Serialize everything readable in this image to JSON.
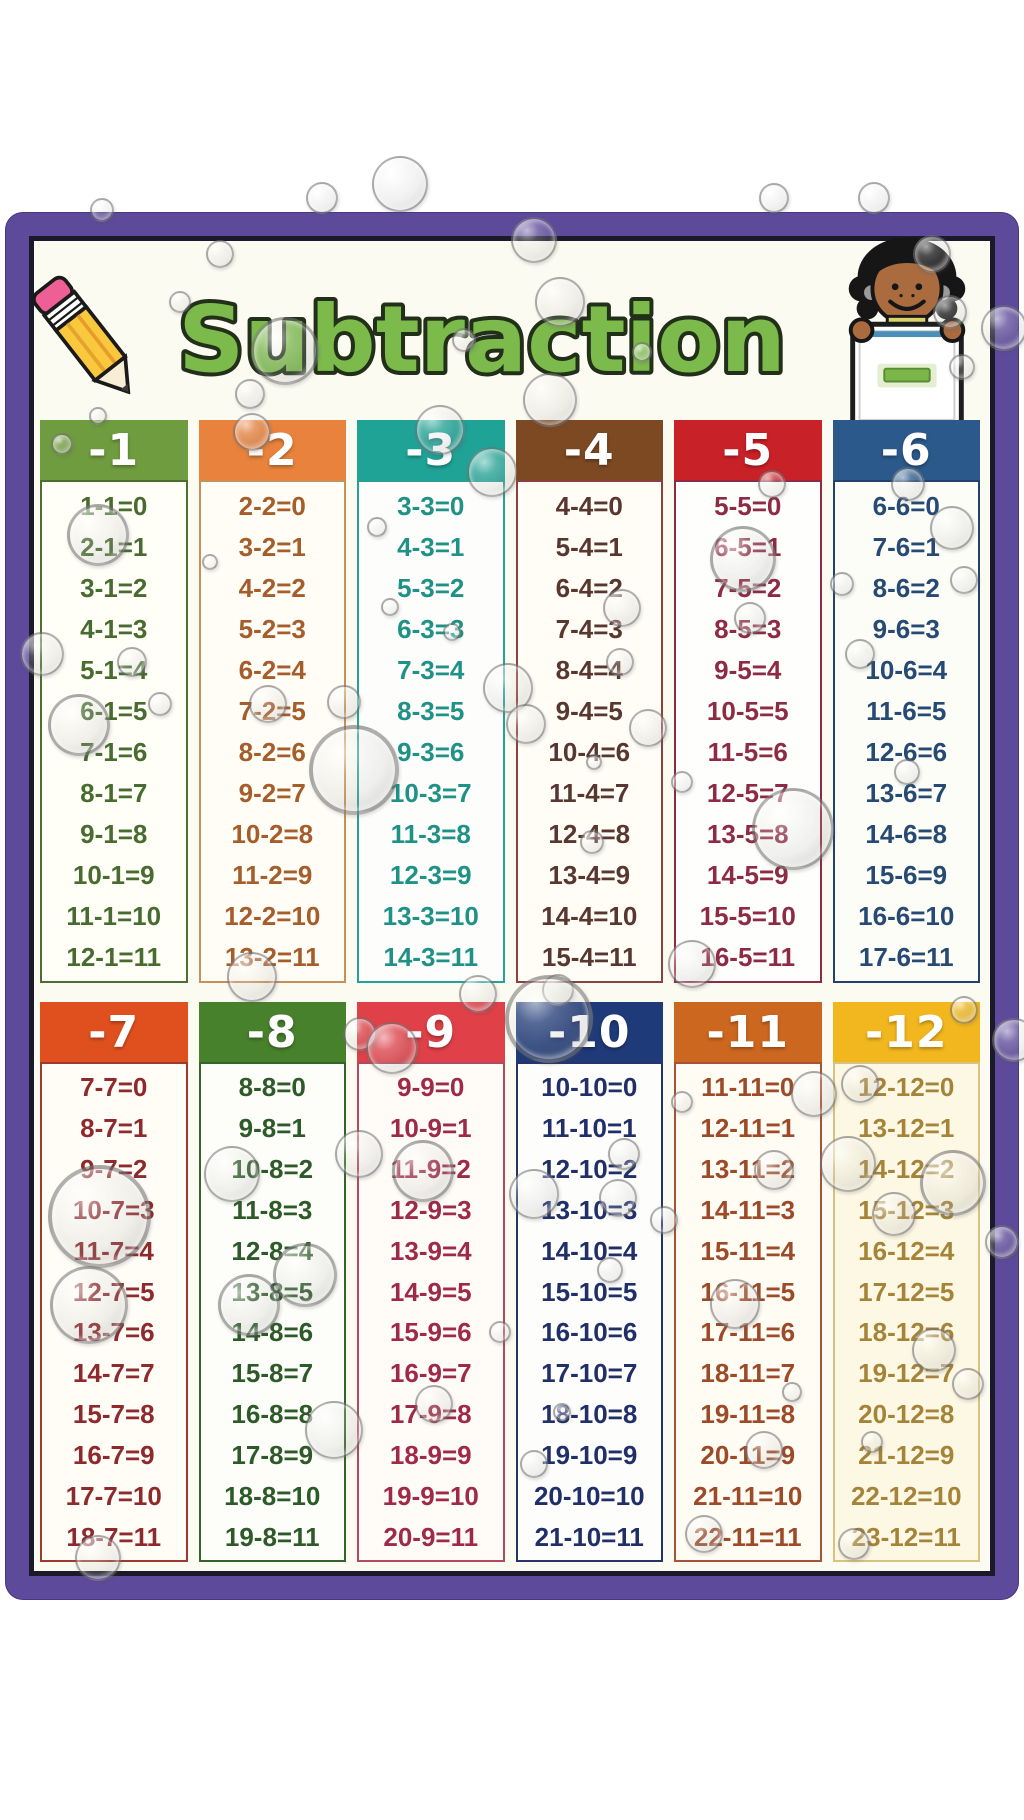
{
  "poster": {
    "title": "Subtraction",
    "icons": {
      "left": "pencil-icon",
      "right": "child-with-minus-sign-icon"
    },
    "frame_color": "#5d4a9b",
    "title_fill": "#7cba4c",
    "title_outline": "#22301a"
  },
  "columns": [
    {
      "label": "-1",
      "colors": {
        "header": "#6f9c3e",
        "text": "#486b30",
        "border": "#4c6e31",
        "body": "#fffef7"
      },
      "facts": [
        "1-1=0",
        "2-1=1",
        "3-1=2",
        "4-1=3",
        "5-1=4",
        "6-1=5",
        "7-1=6",
        "8-1=7",
        "9-1=8",
        "10-1=9",
        "11-1=10",
        "12-1=11"
      ]
    },
    {
      "label": "-2",
      "colors": {
        "header": "#e8823c",
        "text": "#a55d2b",
        "border": "#c79058",
        "body": "#fffdf5"
      },
      "facts": [
        "2-2=0",
        "3-2=1",
        "4-2=2",
        "5-2=3",
        "6-2=4",
        "7-2=5",
        "8-2=6",
        "9-2=7",
        "10-2=8",
        "11-2=9",
        "12-2=10",
        "13-2=11"
      ]
    },
    {
      "label": "-3",
      "colors": {
        "header": "#1fa396",
        "text": "#1f9187",
        "border": "#27a095",
        "body": "#fdfefb"
      },
      "facts": [
        "3-3=0",
        "4-3=1",
        "5-3=2",
        "6-3=3",
        "7-3=4",
        "8-3=5",
        "9-3=6",
        "10-3=7",
        "11-3=8",
        "12-3=9",
        "13-3=10",
        "14-3=11"
      ]
    },
    {
      "label": "-4",
      "colors": {
        "header": "#7c4922",
        "text": "#573730",
        "border": "#8a4140",
        "body": "#fffdf6"
      },
      "facts": [
        "4-4=0",
        "5-4=1",
        "6-4=2",
        "7-4=3",
        "8-4=4",
        "9-4=5",
        "10-4=6",
        "11-4=7",
        "12-4=8",
        "13-4=9",
        "14-4=10",
        "15-4=11"
      ]
    },
    {
      "label": "-5",
      "colors": {
        "header": "#c92128",
        "text": "#8e2b44",
        "border": "#8e2b44",
        "body": "#fefefc"
      },
      "facts": [
        "5-5=0",
        "6-5=1",
        "7-5=2",
        "8-5=3",
        "9-5=4",
        "10-5=5",
        "11-5=6",
        "12-5=7",
        "13-5=8",
        "14-5=9",
        "15-5=10",
        "16-5=11"
      ]
    },
    {
      "label": "-6",
      "colors": {
        "header": "#2b598c",
        "text": "#264a73",
        "border": "#23406e",
        "body": "#fdfdf8"
      },
      "facts": [
        "6-6=0",
        "7-6=1",
        "8-6=2",
        "9-6=3",
        "10-6=4",
        "11-6=5",
        "12-6=6",
        "13-6=7",
        "14-6=8",
        "15-6=9",
        "16-6=10",
        "17-6=11"
      ]
    },
    {
      "label": "-7",
      "colors": {
        "header": "#e0501f",
        "text": "#8e2a2e",
        "border": "#9c3a30",
        "body": "#fffdf6"
      },
      "facts": [
        "7-7=0",
        "8-7=1",
        "9-7=2",
        "10-7=3",
        "11-7=4",
        "12-7=5",
        "13-7=6",
        "14-7=7",
        "15-7=8",
        "16-7=9",
        "17-7=10",
        "18-7=11"
      ]
    },
    {
      "label": "-8",
      "colors": {
        "header": "#48812c",
        "text": "#2d5a28",
        "border": "#35642a",
        "body": "#fdfef9"
      },
      "facts": [
        "8-8=0",
        "9-8=1",
        "10-8=2",
        "11-8=3",
        "12-8=4",
        "13-8=5",
        "14-8=6",
        "15-8=7",
        "16-8=8",
        "17-8=9",
        "18-8=10",
        "19-8=11"
      ]
    },
    {
      "label": "-9",
      "colors": {
        "header": "#e04048",
        "text": "#9e2a47",
        "border": "#b04a62",
        "body": "#fffcf8"
      },
      "facts": [
        "9-9=0",
        "10-9=1",
        "11-9=2",
        "12-9=3",
        "13-9=4",
        "14-9=5",
        "15-9=6",
        "16-9=7",
        "17-9=8",
        "18-9=9",
        "19-9=10",
        "20-9=11"
      ]
    },
    {
      "label": "-10",
      "colors": {
        "header": "#1f3a78",
        "text": "#202f68",
        "border": "#26346b",
        "body": "#fdfdfb"
      },
      "facts": [
        "10-10=0",
        "11-10=1",
        "12-10=2",
        "13-10=3",
        "14-10=4",
        "15-10=5",
        "16-10=6",
        "17-10=7",
        "18-10=8",
        "19-10=9",
        "20-10=10",
        "21-10=11"
      ]
    },
    {
      "label": "-11",
      "colors": {
        "header": "#cc671f",
        "text": "#9c4a28",
        "border": "#a65238",
        "body": "#fffcf4"
      },
      "facts": [
        "11-11=0",
        "12-11=1",
        "13-11=2",
        "14-11=3",
        "15-11=4",
        "16-11=5",
        "17-11=6",
        "18-11=7",
        "19-11=8",
        "20-11=9",
        "21-11=10",
        "22-11=11"
      ]
    },
    {
      "label": "-12",
      "colors": {
        "header": "#f2b71e",
        "text": "#a5843a",
        "border": "#d9c280",
        "body": "#fdf8e3"
      },
      "facts": [
        "12-12=0",
        "13-12=1",
        "14-12=2",
        "15-12=3",
        "16-12=4",
        "17-12=5",
        "18-12=6",
        "19-12=7",
        "20-12=8",
        "21-12=9",
        "22-12=10",
        "23-12=11"
      ]
    }
  ]
}
